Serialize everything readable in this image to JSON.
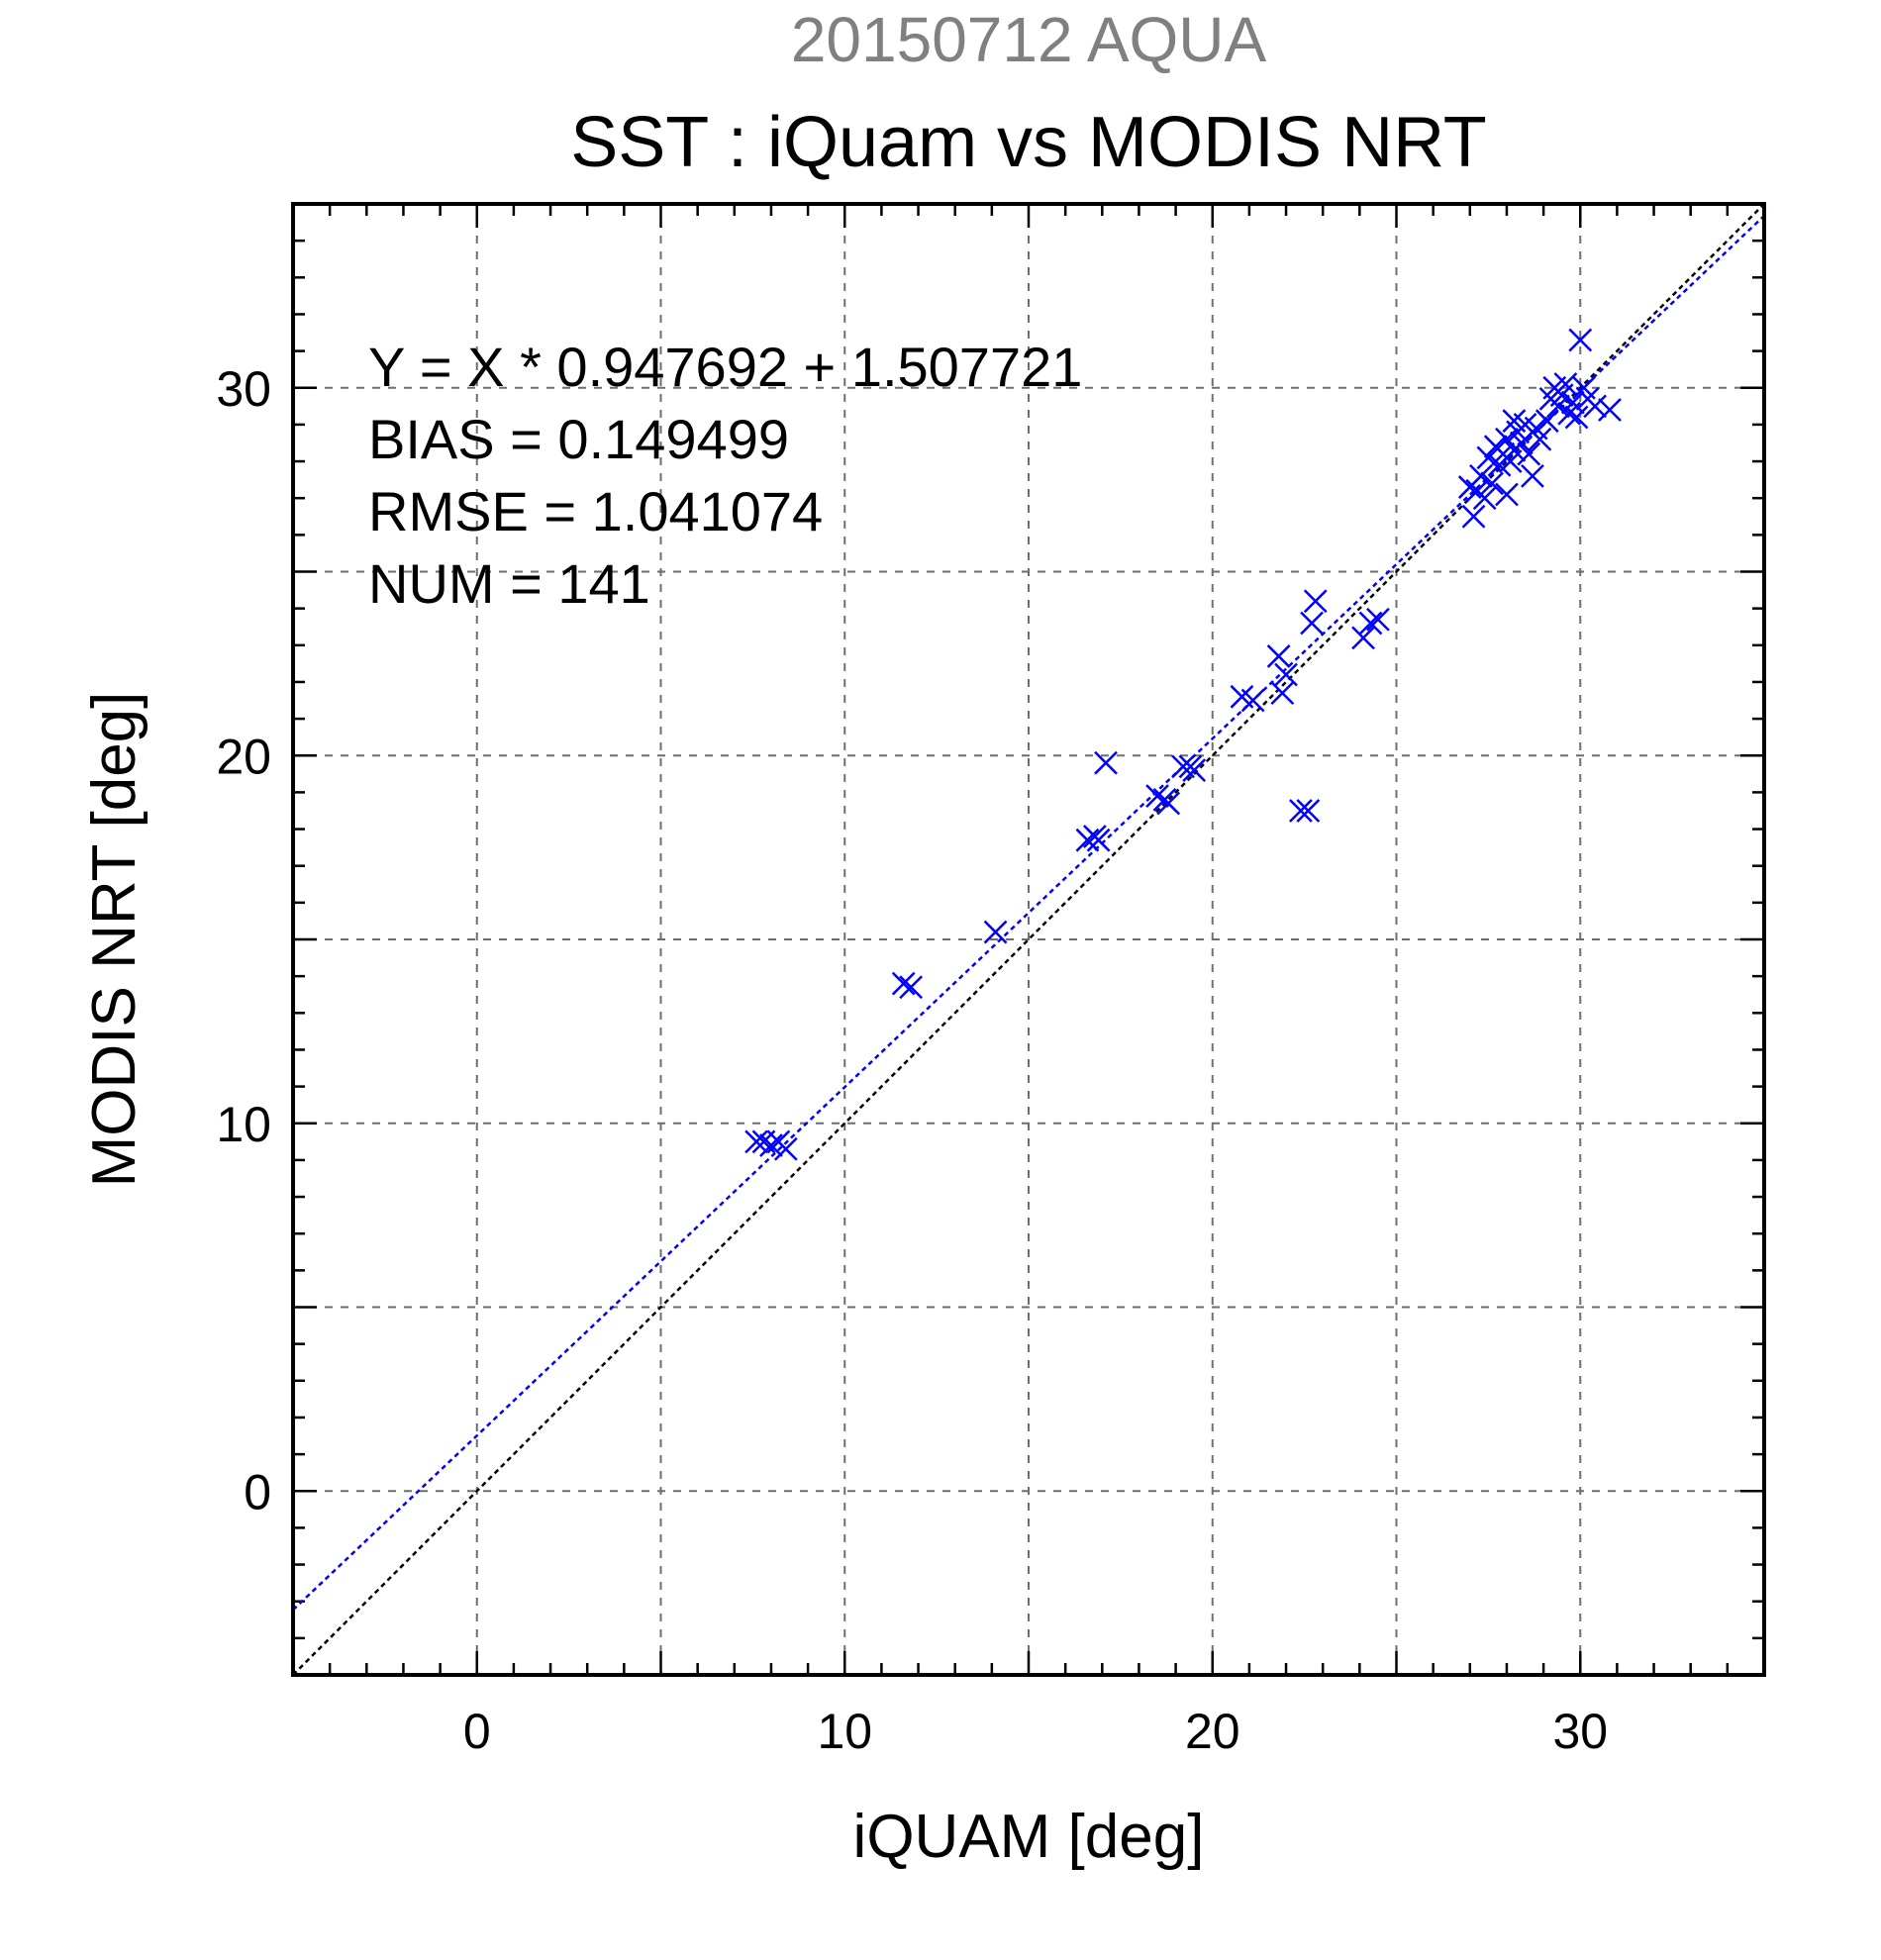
{
  "chart_data": {
    "type": "scatter",
    "date_title": "20150712 AQUA",
    "title": "SST : iQuam vs MODIS NRT",
    "xlabel": "iQUAM [deg]",
    "ylabel": "MODIS NRT [deg]",
    "xlim": [
      -5,
      35
    ],
    "ylim": [
      -5,
      35
    ],
    "x_ticks": [
      0,
      10,
      20,
      30
    ],
    "y_ticks": [
      0,
      10,
      20,
      30
    ],
    "grid": true,
    "stats": [
      "Y = X * 0.947692 + 1.507721",
      "BIAS = 0.149499",
      "RMSE = 1.041074",
      "NUM = 141"
    ],
    "reference_lines": [
      {
        "slope": 1,
        "intercept": 0,
        "color": "#000000"
      },
      {
        "slope": 0.947692,
        "intercept": 1.507721,
        "color": "#0000ff"
      }
    ],
    "marker_color": "#0000ff",
    "points": [
      [
        7.6,
        9.5
      ],
      [
        7.8,
        9.5
      ],
      [
        8.0,
        9.4
      ],
      [
        8.2,
        9.5
      ],
      [
        8.4,
        9.3
      ],
      [
        11.6,
        13.8
      ],
      [
        11.8,
        13.7
      ],
      [
        14.1,
        15.2
      ],
      [
        16.6,
        17.7
      ],
      [
        16.8,
        17.8
      ],
      [
        16.9,
        17.7
      ],
      [
        17.1,
        19.8
      ],
      [
        18.5,
        18.9
      ],
      [
        18.7,
        18.8
      ],
      [
        18.8,
        18.7
      ],
      [
        19.2,
        19.7
      ],
      [
        19.4,
        19.7
      ],
      [
        19.5,
        19.6
      ],
      [
        20.8,
        21.6
      ],
      [
        21.1,
        21.5
      ],
      [
        21.8,
        22.7
      ],
      [
        21.9,
        21.7
      ],
      [
        22.0,
        22.2
      ],
      [
        22.4,
        18.5
      ],
      [
        22.6,
        18.5
      ],
      [
        22.7,
        23.6
      ],
      [
        22.8,
        24.2
      ],
      [
        24.1,
        23.2
      ],
      [
        24.3,
        23.6
      ],
      [
        24.5,
        23.7
      ],
      [
        27.0,
        27.3
      ],
      [
        27.1,
        26.5
      ],
      [
        27.2,
        27.2
      ],
      [
        27.3,
        27.6
      ],
      [
        27.4,
        27.0
      ],
      [
        27.5,
        28.1
      ],
      [
        27.6,
        27.4
      ],
      [
        27.7,
        28.4
      ],
      [
        27.8,
        27.9
      ],
      [
        27.9,
        28.2
      ],
      [
        28.0,
        28.6
      ],
      [
        28.0,
        27.1
      ],
      [
        28.1,
        28.0
      ],
      [
        28.2,
        29.1
      ],
      [
        28.2,
        28.3
      ],
      [
        28.3,
        28.8
      ],
      [
        28.4,
        28.5
      ],
      [
        28.5,
        29.0
      ],
      [
        28.6,
        28.2
      ],
      [
        28.7,
        27.6
      ],
      [
        28.8,
        28.9
      ],
      [
        28.9,
        28.6
      ],
      [
        29.1,
        29.1
      ],
      [
        29.2,
        29.7
      ],
      [
        29.3,
        30.0
      ],
      [
        29.4,
        29.5
      ],
      [
        29.5,
        29.8
      ],
      [
        29.6,
        30.1
      ],
      [
        29.7,
        29.3
      ],
      [
        29.8,
        29.6
      ],
      [
        29.9,
        29.2
      ],
      [
        30.0,
        31.3
      ],
      [
        30.1,
        30.0
      ],
      [
        30.2,
        29.7
      ],
      [
        30.4,
        29.5
      ],
      [
        30.8,
        29.4
      ]
    ]
  }
}
